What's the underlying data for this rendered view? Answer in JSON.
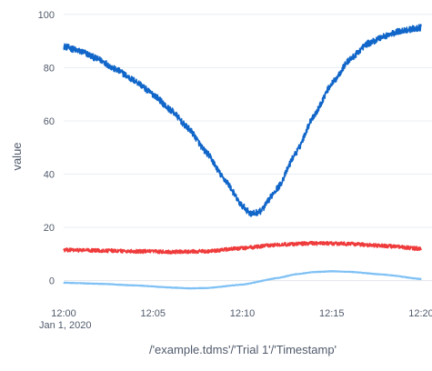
{
  "chart_data": {
    "type": "line",
    "title": "",
    "xlabel": "/'example.tdms'/'Trial 1'/'Timestamp'",
    "ylabel": "value",
    "x_tick_labels": [
      "12:00",
      "12:05",
      "12:10",
      "12:15",
      "12:20"
    ],
    "x_tick_sublabel": "Jan 1, 2020",
    "x_range": [
      "2020-01-01 12:00",
      "2020-01-01 12:20"
    ],
    "ylim": [
      -8,
      102
    ],
    "y_ticks": [
      0,
      20,
      40,
      60,
      80,
      100
    ],
    "grid": true,
    "legend": "none",
    "series": [
      {
        "color": "#1166c9",
        "noise": 1.2,
        "x": [
          "12:00",
          "12:01",
          "12:02",
          "12:03",
          "12:04",
          "12:05",
          "12:06",
          "12:07",
          "12:08",
          "12:09",
          "12:10",
          "12:10:30",
          "12:11",
          "12:12",
          "12:13",
          "12:14",
          "12:15",
          "12:16",
          "12:17",
          "12:18",
          "12:19",
          "12:20"
        ],
        "values": [
          88,
          86,
          83,
          79,
          75,
          70,
          64,
          57,
          48,
          38,
          28,
          25,
          26,
          35,
          48,
          62,
          74,
          83,
          89,
          92,
          94,
          95
        ]
      },
      {
        "color": "#ef3b3b",
        "noise": 0.7,
        "x": [
          "12:00",
          "12:02",
          "12:04",
          "12:06",
          "12:08",
          "12:10",
          "12:12",
          "12:14",
          "12:16",
          "12:18",
          "12:20"
        ],
        "values": [
          11.5,
          11.3,
          11.0,
          10.8,
          11.0,
          12.2,
          13.5,
          14.0,
          13.8,
          13.0,
          12.0
        ]
      },
      {
        "color": "#7fc1f5",
        "noise": 0.1,
        "x": [
          "12:00",
          "12:02",
          "12:04",
          "12:06",
          "12:07",
          "12:08",
          "12:10",
          "12:12",
          "12:13",
          "12:14",
          "12:15",
          "12:16",
          "12:18",
          "12:20"
        ],
        "values": [
          -0.8,
          -1.2,
          -1.8,
          -2.6,
          -2.9,
          -2.8,
          -1.5,
          1.0,
          2.4,
          3.2,
          3.5,
          3.3,
          2.2,
          0.6
        ]
      }
    ]
  }
}
